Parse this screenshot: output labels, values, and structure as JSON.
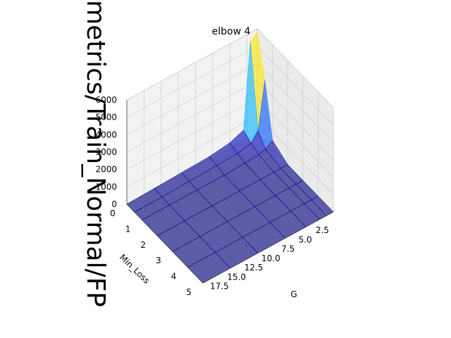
{
  "chart_data": {
    "type": "surface3d",
    "title": "elbow 4",
    "xlabel": "G",
    "ylabel": "Min_Loss",
    "zlabel": "metrics/Train_Normal/FP",
    "x_ticks": [
      "2.5",
      "5.0",
      "7.5",
      "10.0",
      "12.5",
      "15.0",
      "17.5"
    ],
    "y_ticks": [
      "0",
      "1",
      "2",
      "3",
      "4",
      "5"
    ],
    "z_ticks": [
      "0",
      "1000",
      "2000",
      "3000",
      "4000",
      "5000",
      "6000"
    ],
    "xlim": [
      1,
      20
    ],
    "ylim": [
      0,
      5
    ],
    "zlim": [
      0,
      6000
    ],
    "colormap": "jet",
    "surface_alpha": 0.6,
    "surface": {
      "G": [
        1,
        2,
        3,
        5,
        8,
        12,
        16,
        20
      ],
      "Min_Loss": [
        0,
        0.5,
        1,
        2,
        3,
        4,
        5
      ],
      "z": [
        [
          5800,
          5500,
          600,
          300,
          150,
          100,
          50,
          0
        ],
        [
          3500,
          800,
          300,
          150,
          100,
          50,
          0,
          0
        ],
        [
          500,
          200,
          100,
          50,
          0,
          0,
          0,
          0
        ],
        [
          0,
          0,
          0,
          0,
          0,
          0,
          0,
          0
        ],
        [
          0,
          0,
          0,
          0,
          0,
          0,
          0,
          0
        ],
        [
          0,
          0,
          0,
          0,
          0,
          0,
          0,
          0
        ],
        [
          0,
          0,
          0,
          0,
          0,
          0,
          0,
          0
        ]
      ]
    }
  }
}
